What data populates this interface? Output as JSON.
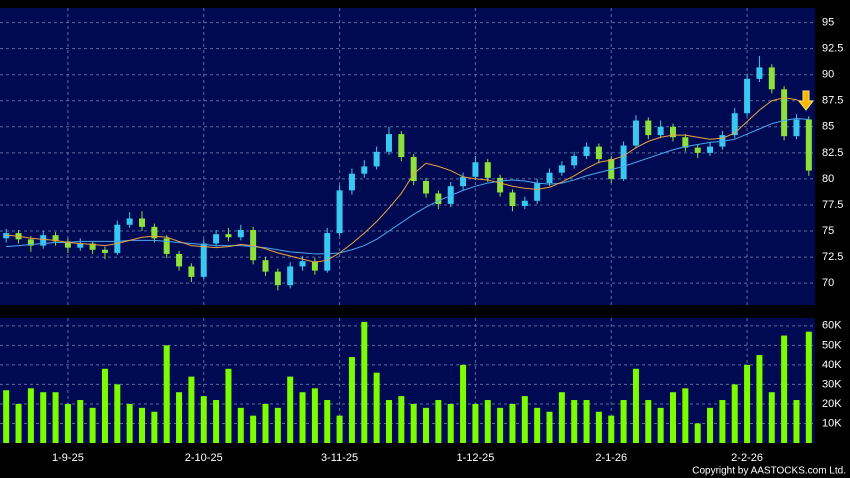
{
  "chart_data": {
    "type": "candlestick",
    "categories": [
      null,
      null,
      null,
      null,
      null,
      "1-9-25",
      null,
      null,
      null,
      null,
      null,
      null,
      null,
      null,
      null,
      null,
      "2-10-25",
      null,
      null,
      null,
      null,
      null,
      null,
      null,
      null,
      null,
      null,
      "3-11-25",
      null,
      null,
      null,
      null,
      null,
      null,
      null,
      null,
      null,
      null,
      "1-12-25",
      null,
      null,
      null,
      null,
      null,
      null,
      null,
      null,
      null,
      null,
      "2-1-26",
      null,
      null,
      null,
      null,
      null,
      null,
      null,
      null,
      null,
      null,
      "2-2-26",
      null,
      null,
      null,
      null,
      null
    ],
    "candles": [
      [
        74.3,
        75.2,
        73.9,
        74.8
      ],
      [
        74.8,
        75.1,
        73.8,
        74.2
      ],
      [
        74.2,
        74.5,
        73.0,
        73.6
      ],
      [
        73.6,
        75.0,
        73.3,
        74.6
      ],
      [
        74.6,
        74.9,
        73.6,
        74.0
      ],
      [
        74.0,
        74.3,
        72.9,
        73.4
      ],
      [
        73.4,
        74.3,
        73.1,
        73.8
      ],
      [
        73.8,
        74.0,
        72.8,
        73.2
      ],
      [
        73.2,
        73.5,
        72.3,
        72.9
      ],
      [
        72.9,
        76.0,
        72.7,
        75.6
      ],
      [
        75.6,
        76.8,
        75.3,
        76.2
      ],
      [
        76.2,
        76.9,
        75.0,
        75.4
      ],
      [
        75.4,
        75.7,
        73.9,
        74.3
      ],
      [
        74.3,
        74.6,
        72.4,
        72.8
      ],
      [
        72.8,
        73.1,
        71.2,
        71.6
      ],
      [
        71.6,
        71.9,
        70.1,
        70.6
      ],
      [
        70.6,
        74.2,
        70.4,
        73.8
      ],
      [
        73.8,
        75.1,
        73.5,
        74.7
      ],
      [
        74.7,
        75.3,
        74.0,
        74.4
      ],
      [
        74.4,
        75.6,
        74.1,
        75.1
      ],
      [
        75.1,
        75.4,
        71.8,
        72.2
      ],
      [
        72.2,
        72.5,
        70.7,
        71.1
      ],
      [
        71.1,
        71.4,
        69.3,
        69.8
      ],
      [
        69.8,
        72.0,
        69.5,
        71.6
      ],
      [
        71.6,
        72.6,
        71.2,
        72.1
      ],
      [
        72.1,
        72.4,
        70.8,
        71.2
      ],
      [
        71.2,
        75.3,
        71.0,
        74.8
      ],
      [
        74.8,
        79.4,
        74.5,
        78.9
      ],
      [
        78.9,
        81.0,
        78.5,
        80.5
      ],
      [
        80.5,
        81.8,
        80.1,
        81.2
      ],
      [
        81.2,
        83.1,
        80.9,
        82.6
      ],
      [
        82.6,
        85.0,
        82.3,
        84.3
      ],
      [
        84.3,
        84.6,
        81.7,
        82.1
      ],
      [
        82.1,
        82.4,
        79.4,
        79.8
      ],
      [
        79.8,
        80.1,
        78.2,
        78.6
      ],
      [
        78.6,
        78.9,
        77.1,
        77.6
      ],
      [
        77.6,
        79.7,
        77.3,
        79.3
      ],
      [
        79.3,
        80.6,
        78.9,
        80.2
      ],
      [
        80.2,
        82.2,
        79.9,
        81.6
      ],
      [
        81.6,
        81.9,
        79.7,
        80.1
      ],
      [
        80.1,
        80.4,
        78.3,
        78.7
      ],
      [
        78.7,
        79.0,
        76.9,
        77.4
      ],
      [
        77.4,
        78.3,
        77.1,
        77.9
      ],
      [
        77.9,
        80.0,
        77.6,
        79.6
      ],
      [
        79.6,
        81.0,
        79.3,
        80.6
      ],
      [
        80.6,
        81.7,
        80.3,
        81.3
      ],
      [
        81.3,
        82.6,
        81.0,
        82.2
      ],
      [
        82.2,
        83.5,
        81.9,
        83.1
      ],
      [
        83.1,
        83.4,
        81.5,
        81.9
      ],
      [
        81.9,
        82.2,
        79.6,
        80.0
      ],
      [
        80.0,
        83.6,
        79.8,
        83.2
      ],
      [
        83.2,
        86.1,
        82.9,
        85.6
      ],
      [
        85.6,
        85.9,
        83.8,
        84.2
      ],
      [
        84.2,
        85.6,
        83.9,
        85.0
      ],
      [
        85.0,
        85.3,
        83.6,
        84.0
      ],
      [
        84.0,
        84.3,
        82.6,
        83.0
      ],
      [
        83.0,
        83.3,
        82.0,
        82.5
      ],
      [
        82.5,
        83.5,
        82.2,
        83.1
      ],
      [
        83.1,
        84.6,
        82.8,
        84.2
      ],
      [
        84.2,
        86.8,
        83.9,
        86.3
      ],
      [
        86.3,
        90.1,
        86.0,
        89.6
      ],
      [
        89.6,
        91.8,
        89.3,
        90.7
      ],
      [
        90.7,
        91.0,
        88.2,
        88.6
      ],
      [
        88.6,
        88.9,
        83.7,
        84.1
      ],
      [
        84.1,
        86.2,
        83.8,
        85.7
      ],
      [
        85.7,
        86.0,
        80.3,
        80.8
      ]
    ],
    "up_color": "#38c8f0",
    "down_color": "#8ee03a",
    "ma_short": {
      "color": "#f0a040",
      "values": [
        74.6,
        74.5,
        74.3,
        74.2,
        74.1,
        73.9,
        73.8,
        73.7,
        73.6,
        73.8,
        74.1,
        74.4,
        74.5,
        74.4,
        74.0,
        73.6,
        73.5,
        73.4,
        73.5,
        73.7,
        73.6,
        73.3,
        72.9,
        72.6,
        72.3,
        72.0,
        72.2,
        72.9,
        73.8,
        74.8,
        75.9,
        77.2,
        78.6,
        80.5,
        81.5,
        81.2,
        80.8,
        80.2,
        80.0,
        79.9,
        79.6,
        79.3,
        79.1,
        79.0,
        79.2,
        79.7,
        80.3,
        81.0,
        81.6,
        81.8,
        82.2,
        83.0,
        83.6,
        84.0,
        84.2,
        84.2,
        84.0,
        83.8,
        83.9,
        84.4,
        85.5,
        86.6,
        87.5,
        87.8,
        87.6,
        86.9
      ]
    },
    "ma_long": {
      "color": "#4aa8f0",
      "values": [
        73.5,
        73.6,
        73.7,
        73.8,
        73.9,
        73.9,
        74.0,
        74.0,
        74.0,
        74.0,
        74.1,
        74.1,
        74.1,
        74.0,
        73.9,
        73.8,
        73.7,
        73.6,
        73.6,
        73.6,
        73.5,
        73.4,
        73.2,
        73.0,
        72.9,
        72.8,
        72.8,
        72.9,
        73.2,
        73.6,
        74.2,
        75.0,
        75.8,
        76.6,
        77.3,
        77.9,
        78.4,
        78.9,
        79.3,
        79.6,
        79.8,
        79.9,
        79.8,
        79.6,
        79.5,
        79.6,
        79.9,
        80.3,
        80.6,
        80.9,
        81.2,
        81.6,
        82.0,
        82.4,
        82.8,
        83.1,
        83.3,
        83.5,
        83.6,
        83.8,
        84.3,
        84.8,
        85.3,
        85.6,
        85.8,
        85.7
      ]
    },
    "ylim": [
      67.9,
      96.4
    ],
    "yticks": [
      70,
      72.5,
      75,
      77.5,
      80,
      82.5,
      85,
      87.5,
      90,
      92.5,
      95
    ],
    "grid": true,
    "volume": {
      "color": "#7cfc00",
      "values": [
        27000,
        20000,
        28000,
        26000,
        26000,
        20000,
        22000,
        18000,
        38000,
        30000,
        20000,
        18000,
        16000,
        50000,
        26000,
        34000,
        24000,
        22000,
        38000,
        18000,
        14000,
        20000,
        18000,
        34000,
        26000,
        28000,
        22000,
        14000,
        44000,
        62000,
        36000,
        22000,
        24000,
        20000,
        18000,
        22000,
        20000,
        40000,
        20000,
        22000,
        18000,
        20000,
        24000,
        18000,
        16000,
        26000,
        22000,
        22000,
        16000,
        14000,
        22000,
        38000,
        22000,
        18000,
        26000,
        28000,
        10000,
        18000,
        22000,
        30000,
        40000,
        45000,
        26000,
        55000,
        22000,
        57000
      ],
      "ylim": [
        0,
        64000
      ],
      "yticks": [
        {
          "value": 10000,
          "label": "10K"
        },
        {
          "value": 20000,
          "label": "20K"
        },
        {
          "value": 30000,
          "label": "30K"
        },
        {
          "value": 40000,
          "label": "40K"
        },
        {
          "value": 50000,
          "label": "50K"
        },
        {
          "value": 60000,
          "label": "60K"
        }
      ]
    },
    "credit": "Copyright by AASTOCKS.com Ltd."
  }
}
